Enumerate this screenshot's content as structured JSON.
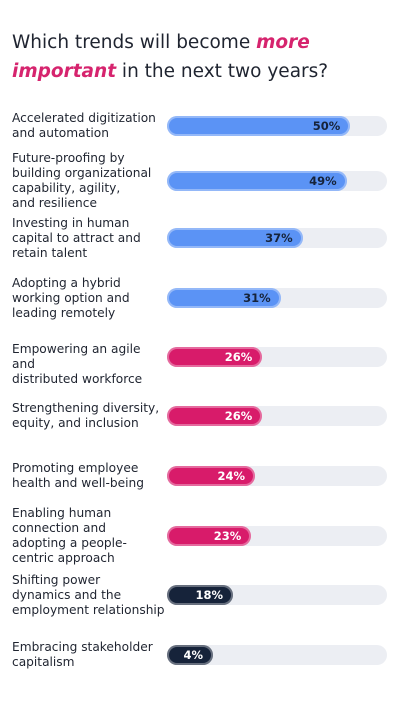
{
  "title": {
    "part1": "Which trends will become ",
    "highlight1": "more",
    "highlight2": "important",
    "part2": " in the next two years?"
  },
  "colors": {
    "highlight": "#d6246e",
    "blue": "#5b93f5",
    "pink": "#d81b6a",
    "navy": "#16233a",
    "track": "#eceef3"
  },
  "chart_data": {
    "type": "bar",
    "orientation": "horizontal",
    "xlim": [
      0,
      60
    ],
    "unit": "%",
    "categories": [
      "Accelerated digitization and automation",
      "Future-proofing by building organizational capability, agility, and resilience",
      "Investing in human capital to attract and retain talent",
      "Adopting a hybrid working option and leading remotely",
      "Empowering an agile and distributed workforce",
      "Strengthening diversity, equity, and inclusion",
      "Promoting employee health and well-being",
      "Enabling human connection and adopting a people-centric approach",
      "Shifting power dynamics and the employment relationship",
      "Embracing stakeholder capitalism"
    ],
    "values": [
      50,
      49,
      37,
      31,
      26,
      26,
      24,
      23,
      18,
      4
    ],
    "value_labels": [
      "50%",
      "49%",
      "37%",
      "31%",
      "26%",
      "26%",
      "24%",
      "23%",
      "18%",
      "4%"
    ],
    "bar_colors": [
      "blue",
      "blue",
      "blue",
      "blue",
      "pink",
      "pink",
      "pink",
      "pink",
      "navy",
      "navy"
    ],
    "label_lines": [
      [
        "Accelerated digitization",
        "and automation"
      ],
      [
        "Future-proofing by",
        "building organizational",
        "capability, agility,",
        "and resilience"
      ],
      [
        "Investing in human",
        "capital to attract and",
        "retain talent"
      ],
      [
        "Adopting a hybrid",
        "working option and",
        "leading remotely"
      ],
      [
        "Empowering an agile and",
        "distributed workforce"
      ],
      [
        "Strengthening diversity,",
        "equity, and inclusion"
      ],
      [
        "Promoting employee",
        "health and well-being"
      ],
      [
        "Enabling human",
        "connection and",
        "adopting a people-",
        "centric approach"
      ],
      [
        "Shifting power",
        "dynamics and the",
        "employment relationship"
      ],
      [
        "Embracing stakeholder",
        "capitalism"
      ]
    ]
  }
}
